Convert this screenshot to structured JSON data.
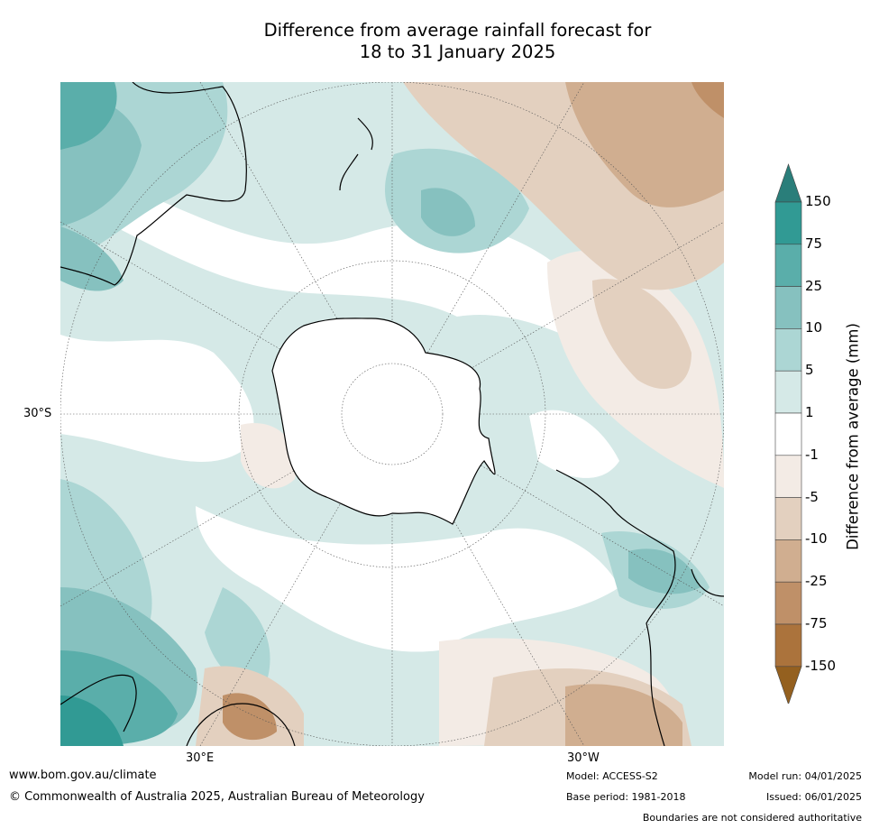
{
  "title": {
    "line1": "Difference from average rainfall forecast for",
    "line2": "18 to 31 January 2025"
  },
  "map": {
    "projection": "south-polar-stereographic",
    "labels": {
      "lat": "30°S",
      "lon_east": "30°E",
      "lon_west": "30°W"
    }
  },
  "colorbar": {
    "title": "Difference from average (mm)",
    "ticks": [
      "150",
      "75",
      "25",
      "10",
      "5",
      "1",
      "-1",
      "-5",
      "-10",
      "-25",
      "-75",
      "-150"
    ],
    "colors": {
      "over": "#2a7e7a",
      "b150": "#319a94",
      "b75": "#5aaeaa",
      "b25": "#86c1bf",
      "b10": "#acd6d4",
      "b5": "#d5e9e7",
      "b1": "#ffffff",
      "bm1": "#f3ebe5",
      "bm5": "#e3d0bf",
      "bm10": "#d0ae90",
      "bm25": "#bf9068",
      "bm75": "#ab733c",
      "under": "#94601f"
    }
  },
  "footer": {
    "website": "www.bom.gov.au/climate",
    "copyright": "© Commonwealth of Australia 2025, Australian Bureau of Meteorology",
    "model": "Model: ACCESS-S2",
    "base_period": "Base period: 1981-2018",
    "model_run": "Model run: 04/01/2025",
    "issued": "Issued: 06/01/2025",
    "disclaimer": "Boundaries are not considered authoritative"
  }
}
